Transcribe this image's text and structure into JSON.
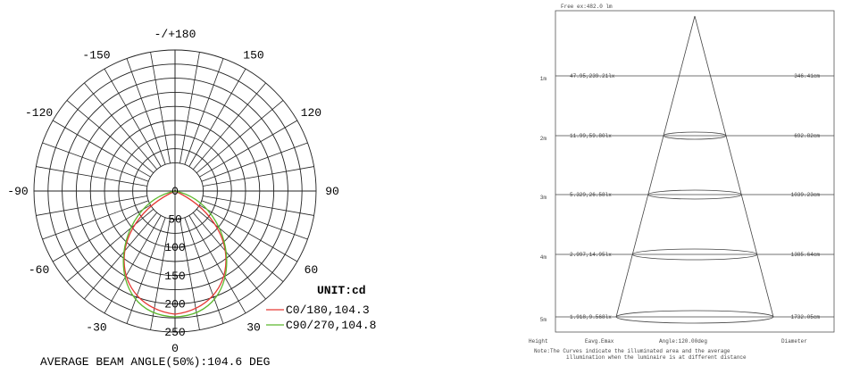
{
  "polar": {
    "angle_labels": [
      "-/+180",
      "150",
      "120",
      "90",
      "60",
      "30",
      "0",
      "-30",
      "-60",
      "-90",
      "-120",
      "-150"
    ],
    "radial_labels": [
      "0",
      "50",
      "100",
      "150",
      "200",
      "250"
    ],
    "unit": "UNIT:cd",
    "legend": [
      {
        "name": "C0/180,104.3",
        "color": "#e53935"
      },
      {
        "name": "C90/270,104.8",
        "color": "#5cb82e"
      }
    ],
    "caption": "AVERAGE BEAM ANGLE(50%):104.6 DEG"
  },
  "cone": {
    "title": "Free ex:482.0 lm",
    "rows": [
      {
        "height": "1m",
        "illuminance": "47.95,239.21lx",
        "diameter": "346.41cm"
      },
      {
        "height": "2m",
        "illuminance": "11.99,59.80lx",
        "diameter": "692.82cm"
      },
      {
        "height": "3m",
        "illuminance": "5.329,26.58lx",
        "diameter": "1039.23cm"
      },
      {
        "height": "4m",
        "illuminance": "2.997,14.95lx",
        "diameter": "1385.64cm"
      },
      {
        "height": "5m",
        "illuminance": "1.918,9.568lx",
        "diameter": "1732.05cm"
      }
    ],
    "footer": [
      "Height",
      "Eavg.Emax",
      "Angle:120.00deg",
      "Diameter"
    ],
    "note": [
      "Note:The Curves indicate the illuminated area and the average",
      "illumination when the luminaire is at different distance"
    ]
  }
}
